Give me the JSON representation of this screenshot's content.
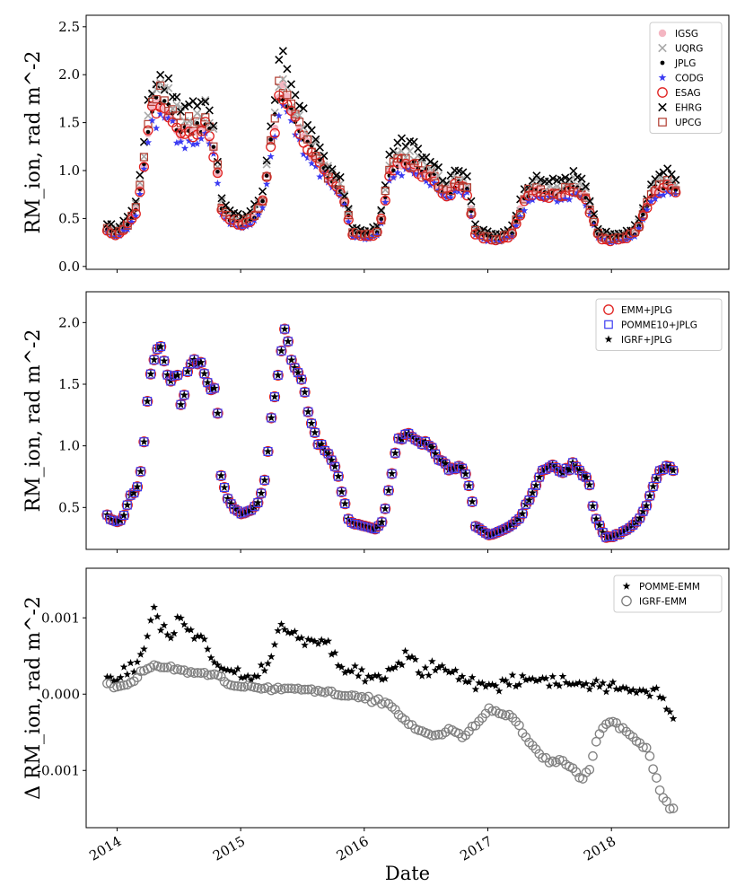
{
  "x_axis": {
    "label": "Date",
    "ticks": [
      "2014",
      "2015",
      "2016",
      "2017",
      "2018"
    ],
    "tick_values": [
      2014,
      2015,
      2016,
      2017,
      2018
    ],
    "range": [
      2013.75,
      2018.95
    ]
  },
  "chart_data": [
    {
      "type": "scatter",
      "ylabel": "RM_ion, rad m^-2",
      "ylim": [
        -0.03,
        2.62
      ],
      "yticks": [
        0.0,
        0.5,
        1.0,
        1.5,
        2.0,
        2.5
      ],
      "ytick_labels": [
        "0.0",
        "0.5",
        "1.0",
        "1.5",
        "2.0",
        "2.5"
      ],
      "legend_position": "top-right",
      "series": [
        {
          "name": "IGSG",
          "marker": "filled-circle",
          "color": "#f4b6c2",
          "scale": 1.0
        },
        {
          "name": "UQRG",
          "marker": "x",
          "color": "#a8a8a8",
          "scale": 1.1
        },
        {
          "name": "JPLG",
          "marker": "small-dot",
          "color": "#000000",
          "scale": 1.0
        },
        {
          "name": "CODG",
          "marker": "star",
          "color": "#3b3bf2",
          "scale": 0.92
        },
        {
          "name": "ESAG",
          "marker": "open-circle",
          "color": "#e0201e",
          "scale": 0.98
        },
        {
          "name": "EHRG",
          "marker": "x",
          "color": "#000000",
          "scale": 1.18
        },
        {
          "name": "UPCG",
          "marker": "open-square",
          "color": "#b03a2e",
          "scale": 1.03
        }
      ],
      "base_curve": {
        "x": [
          2013.92,
          2014.0,
          2014.08,
          2014.15,
          2014.2,
          2014.27,
          2014.35,
          2014.45,
          2014.55,
          2014.65,
          2014.72,
          2014.8,
          2014.84,
          2014.9,
          2015.0,
          2015.1,
          2015.18,
          2015.25,
          2015.32,
          2015.4,
          2015.5,
          2015.6,
          2015.7,
          2015.8,
          2015.86,
          2015.9,
          2016.0,
          2016.1,
          2016.15,
          2016.2,
          2016.28,
          2016.35,
          2016.45,
          2016.55,
          2016.65,
          2016.75,
          2016.83,
          2016.9,
          2017.0,
          2017.1,
          2017.2,
          2017.3,
          2017.4,
          2017.5,
          2017.6,
          2017.7,
          2017.8,
          2017.86,
          2017.9,
          2018.0,
          2018.1,
          2018.2,
          2018.28,
          2018.35,
          2018.45,
          2018.5
        ],
        "y": [
          0.38,
          0.33,
          0.42,
          0.58,
          0.9,
          1.6,
          1.72,
          1.55,
          1.4,
          1.42,
          1.5,
          1.15,
          0.6,
          0.5,
          0.44,
          0.5,
          0.68,
          1.3,
          1.85,
          1.65,
          1.35,
          1.15,
          0.95,
          0.8,
          0.6,
          0.35,
          0.32,
          0.33,
          0.55,
          0.95,
          1.1,
          1.1,
          1.0,
          0.95,
          0.75,
          0.85,
          0.8,
          0.35,
          0.3,
          0.28,
          0.35,
          0.7,
          0.8,
          0.75,
          0.75,
          0.82,
          0.7,
          0.45,
          0.3,
          0.28,
          0.3,
          0.35,
          0.6,
          0.8,
          0.85,
          0.8
        ]
      }
    },
    {
      "type": "scatter",
      "ylabel": "RM_ion, rad m^-2",
      "ylim": [
        0.16,
        2.25
      ],
      "yticks": [
        0.5,
        1.0,
        1.5,
        2.0
      ],
      "ytick_labels": [
        "0.5",
        "1.0",
        "1.5",
        "2.0"
      ],
      "legend_position": "top-right",
      "series": [
        {
          "name": "EMM+JPLG",
          "marker": "open-circle",
          "color": "#e0201e"
        },
        {
          "name": "POMME10+JPLG",
          "marker": "open-square",
          "color": "#3b3bf2"
        },
        {
          "name": "IGRF+JPLG",
          "marker": "star",
          "color": "#000000"
        }
      ],
      "base_curve": {
        "x": [
          2013.92,
          2014.0,
          2014.05,
          2014.1,
          2014.15,
          2014.2,
          2014.22,
          2014.26,
          2014.3,
          2014.35,
          2014.42,
          2014.48,
          2014.52,
          2014.58,
          2014.64,
          2014.7,
          2014.76,
          2014.8,
          2014.84,
          2014.9,
          2015.0,
          2015.08,
          2015.15,
          2015.2,
          2015.25,
          2015.3,
          2015.36,
          2015.42,
          2015.5,
          2015.56,
          2015.64,
          2015.7,
          2015.78,
          2015.82,
          2015.88,
          2016.0,
          2016.1,
          2016.15,
          2016.2,
          2016.27,
          2016.35,
          2016.45,
          2016.5,
          2016.6,
          2016.7,
          2016.78,
          2016.86,
          2016.9,
          2017.0,
          2017.1,
          2017.18,
          2017.25,
          2017.35,
          2017.45,
          2017.52,
          2017.6,
          2017.68,
          2017.75,
          2017.82,
          2017.86,
          2017.95,
          2018.05,
          2018.15,
          2018.22,
          2018.3,
          2018.38,
          2018.45,
          2018.5
        ],
        "y": [
          0.43,
          0.38,
          0.42,
          0.58,
          0.62,
          0.83,
          1.03,
          1.52,
          1.7,
          1.8,
          1.55,
          1.6,
          1.3,
          1.65,
          1.7,
          1.6,
          1.45,
          1.5,
          0.78,
          0.55,
          0.45,
          0.48,
          0.55,
          0.75,
          1.25,
          1.55,
          1.95,
          1.7,
          1.5,
          1.2,
          1.0,
          0.95,
          0.8,
          0.62,
          0.38,
          0.35,
          0.33,
          0.4,
          0.65,
          1.05,
          1.1,
          1.0,
          1.05,
          0.9,
          0.8,
          0.85,
          0.65,
          0.35,
          0.28,
          0.3,
          0.35,
          0.4,
          0.6,
          0.8,
          0.85,
          0.78,
          0.85,
          0.8,
          0.7,
          0.45,
          0.25,
          0.28,
          0.33,
          0.4,
          0.55,
          0.8,
          0.85,
          0.8
        ]
      }
    },
    {
      "type": "scatter",
      "ylabel": "Δ RM_ion, rad m^-2",
      "ylim": [
        -0.00175,
        0.00165
      ],
      "yticks": [
        -0.001,
        0.0,
        0.001
      ],
      "ytick_labels": [
        "-0.001",
        "0.000",
        "0.001"
      ],
      "legend_position": "top-right",
      "series": [
        {
          "name": "POMME-EMM",
          "marker": "star",
          "color": "#000000"
        },
        {
          "name": "IGRF-EMM",
          "marker": "open-circle",
          "color": "#808080"
        }
      ],
      "pomme_curve": {
        "x": [
          2013.92,
          2014.0,
          2014.1,
          2014.2,
          2014.25,
          2014.3,
          2014.35,
          2014.45,
          2014.5,
          2014.55,
          2014.6,
          2014.7,
          2014.8,
          2014.9,
          2015.0,
          2015.1,
          2015.2,
          2015.25,
          2015.32,
          2015.4,
          2015.5,
          2015.6,
          2015.7,
          2015.8,
          2015.9,
          2016.0,
          2016.1,
          2016.2,
          2016.3,
          2016.35,
          2016.45,
          2016.55,
          2016.65,
          2016.8,
          2017.0,
          2017.2,
          2017.4,
          2017.6,
          2017.8,
          2018.0,
          2018.2,
          2018.4,
          2018.48
        ],
        "y": [
          0.00015,
          0.0002,
          0.00035,
          0.00045,
          0.0008,
          0.0011,
          0.0009,
          0.0007,
          0.0011,
          0.0009,
          0.0008,
          0.0007,
          0.0004,
          0.0003,
          0.0003,
          0.00025,
          0.0003,
          0.0005,
          0.0009,
          0.0008,
          0.0007,
          0.00075,
          0.0007,
          0.0004,
          0.0003,
          0.00025,
          0.0002,
          0.00025,
          0.0004,
          0.00055,
          0.0003,
          0.00035,
          0.0003,
          0.0002,
          0.0001,
          0.00015,
          0.0002,
          0.00015,
          0.00015,
          0.0001,
          5e-05,
          0.0,
          -0.0003
        ]
      },
      "igrf_curve": {
        "x": [
          2013.92,
          2014.0,
          2014.1,
          2014.2,
          2014.3,
          2014.4,
          2014.6,
          2014.8,
          2014.9,
          2015.0,
          2015.2,
          2015.4,
          2015.6,
          2015.8,
          2016.0,
          2016.2,
          2016.3,
          2016.4,
          2016.5,
          2016.6,
          2016.7,
          2016.8,
          2016.9,
          2017.0,
          2017.1,
          2017.2,
          2017.3,
          2017.4,
          2017.5,
          2017.6,
          2017.7,
          2017.76,
          2017.82,
          2017.88,
          2017.95,
          2018.0,
          2018.1,
          2018.2,
          2018.3,
          2018.4,
          2018.48
        ],
        "y": [
          0.00012,
          0.0001,
          0.00012,
          0.0003,
          0.00038,
          0.00035,
          0.00028,
          0.00025,
          0.00012,
          0.0001,
          8e-05,
          8e-05,
          5e-05,
          0.0,
          -5e-05,
          -0.00012,
          -0.0003,
          -0.00045,
          -0.0005,
          -0.00055,
          -0.00045,
          -0.00055,
          -0.0004,
          -0.0002,
          -0.00025,
          -0.0003,
          -0.00055,
          -0.00075,
          -0.0009,
          -0.00085,
          -0.001,
          -0.0011,
          -0.001,
          -0.0006,
          -0.0004,
          -0.00035,
          -0.00045,
          -0.0006,
          -0.00075,
          -0.0013,
          -0.0015
        ]
      }
    }
  ]
}
